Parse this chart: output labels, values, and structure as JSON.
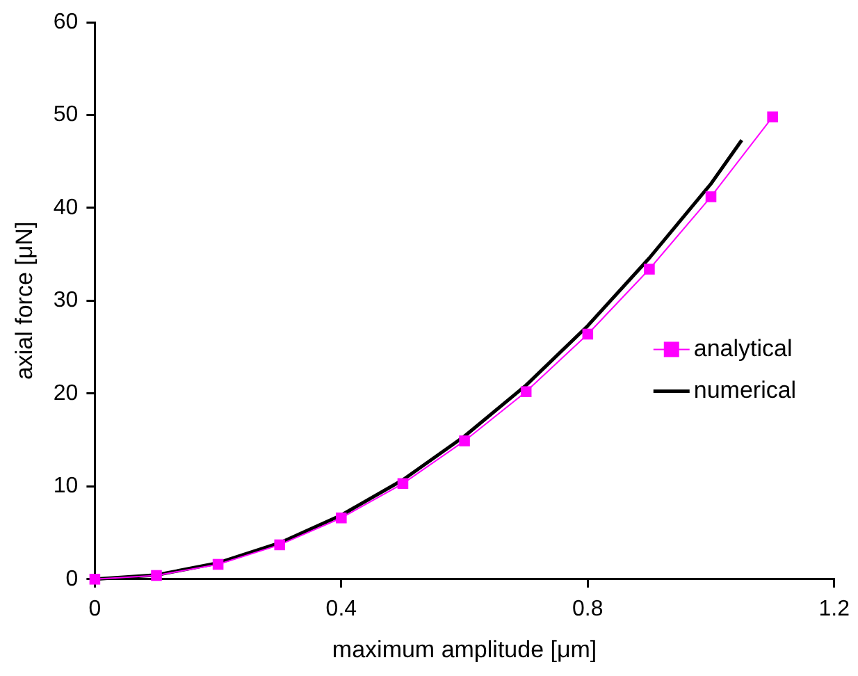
{
  "chart_data": {
    "type": "line",
    "xlabel": "maximum amplitude [μm]",
    "ylabel": "axial force [μN]",
    "xlim": [
      0,
      1.2
    ],
    "xticks": [
      0,
      0.4,
      0.8,
      1.2
    ],
    "ylim": [
      0,
      60
    ],
    "yticks": [
      0,
      10,
      20,
      30,
      40,
      50,
      60
    ],
    "grid": false,
    "legend": "right",
    "series": [
      {
        "name": "analytical",
        "color": "#ff00ff",
        "marker": "square",
        "x": [
          0,
          0.1,
          0.2,
          0.3,
          0.4,
          0.5,
          0.6,
          0.7,
          0.8,
          0.9,
          1.0,
          1.1
        ],
        "values": [
          0,
          0.4,
          1.6,
          3.7,
          6.6,
          10.3,
          14.9,
          20.2,
          26.4,
          33.4,
          41.2,
          49.8
        ]
      },
      {
        "name": "numerical",
        "color": "#000000",
        "marker": "none",
        "x": [
          0,
          0.1,
          0.2,
          0.3,
          0.4,
          0.5,
          0.6,
          0.7,
          0.8,
          0.9,
          1.0,
          1.05
        ],
        "values": [
          0,
          0.45,
          1.75,
          3.9,
          6.9,
          10.7,
          15.4,
          20.9,
          27.3,
          34.6,
          42.6,
          47.3
        ]
      }
    ]
  }
}
